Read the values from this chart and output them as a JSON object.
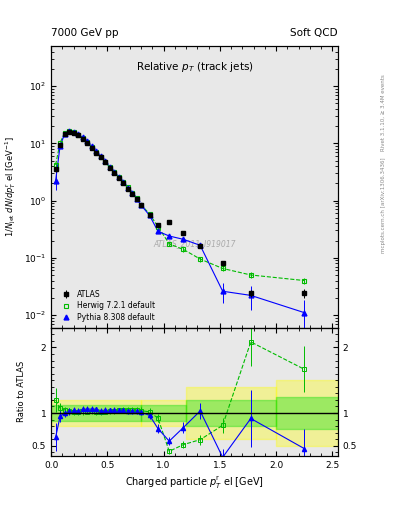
{
  "title_left": "7000 GeV pp",
  "title_right": "Soft QCD",
  "right_label_top": "Rivet 3.1.10, ≥ 3.4M events",
  "right_label_bottom": "mcplots.cern.ch [arXiv:1306.3436]",
  "plot_title": "Relative p_{T} (track jets)",
  "watermark": "ATLAS_2011_I919017",
  "ylabel_main": "1/N_{jet} dN/dp^{r}_{T} el [GeV^{-1}]",
  "ylabel_ratio": "Ratio to ATLAS",
  "xlabel": "Charged particle p^{r}_{T} el [GeV]",
  "atlas_x": [
    0.04,
    0.08,
    0.12,
    0.16,
    0.2,
    0.24,
    0.28,
    0.32,
    0.36,
    0.4,
    0.44,
    0.48,
    0.52,
    0.56,
    0.6,
    0.64,
    0.68,
    0.72,
    0.76,
    0.8,
    0.875,
    0.95,
    1.05,
    1.175,
    1.325,
    1.525,
    1.775,
    2.25
  ],
  "atlas_y": [
    3.5,
    9.5,
    14.5,
    15.8,
    15.2,
    13.8,
    12.0,
    10.2,
    8.3,
    6.9,
    5.7,
    4.65,
    3.75,
    3.05,
    2.45,
    2.0,
    1.62,
    1.32,
    1.05,
    0.82,
    0.57,
    0.38,
    0.42,
    0.27,
    0.16,
    0.08,
    0.024,
    0.024
  ],
  "atlas_yerr": [
    0.4,
    0.5,
    0.5,
    0.5,
    0.5,
    0.4,
    0.4,
    0.3,
    0.25,
    0.2,
    0.18,
    0.14,
    0.11,
    0.09,
    0.07,
    0.06,
    0.05,
    0.04,
    0.035,
    0.028,
    0.022,
    0.018,
    0.022,
    0.016,
    0.012,
    0.007,
    0.003,
    0.004
  ],
  "herwig_x": [
    0.04,
    0.08,
    0.12,
    0.16,
    0.2,
    0.24,
    0.28,
    0.32,
    0.36,
    0.4,
    0.44,
    0.48,
    0.52,
    0.56,
    0.6,
    0.64,
    0.68,
    0.72,
    0.76,
    0.8,
    0.875,
    0.95,
    1.05,
    1.175,
    1.325,
    1.525,
    1.775,
    2.25
  ],
  "herwig_y": [
    4.2,
    10.2,
    15.2,
    16.2,
    15.5,
    14.0,
    12.3,
    10.4,
    8.5,
    7.0,
    5.8,
    4.75,
    3.85,
    3.15,
    2.55,
    2.1,
    1.7,
    1.38,
    1.1,
    0.85,
    0.58,
    0.35,
    0.175,
    0.14,
    0.095,
    0.065,
    0.05,
    0.04
  ],
  "herwig_yerr": [
    0.4,
    0.5,
    0.5,
    0.5,
    0.5,
    0.4,
    0.4,
    0.3,
    0.25,
    0.2,
    0.18,
    0.14,
    0.11,
    0.09,
    0.07,
    0.06,
    0.05,
    0.04,
    0.035,
    0.028,
    0.022,
    0.018,
    0.012,
    0.012,
    0.01,
    0.007,
    0.006,
    0.005
  ],
  "pythia_x": [
    0.04,
    0.08,
    0.12,
    0.16,
    0.2,
    0.24,
    0.28,
    0.32,
    0.36,
    0.4,
    0.44,
    0.48,
    0.52,
    0.56,
    0.6,
    0.64,
    0.68,
    0.72,
    0.76,
    0.8,
    0.875,
    0.95,
    1.05,
    1.175,
    1.325,
    1.525,
    1.775,
    2.25
  ],
  "pythia_y": [
    2.2,
    9.0,
    14.5,
    16.2,
    15.8,
    14.3,
    12.7,
    10.8,
    8.8,
    7.3,
    5.9,
    4.85,
    3.9,
    3.2,
    2.55,
    2.08,
    1.68,
    1.36,
    1.08,
    0.83,
    0.55,
    0.29,
    0.24,
    0.21,
    0.165,
    0.026,
    0.022,
    0.011
  ],
  "pythia_yerr": [
    0.7,
    0.7,
    0.7,
    0.6,
    0.5,
    0.4,
    0.35,
    0.28,
    0.25,
    0.18,
    0.18,
    0.14,
    0.11,
    0.09,
    0.07,
    0.06,
    0.05,
    0.04,
    0.035,
    0.028,
    0.025,
    0.022,
    0.02,
    0.018,
    0.016,
    0.01,
    0.01,
    0.007
  ],
  "atlas_color": "#000000",
  "herwig_color": "#00bb00",
  "pythia_color": "#0000ff",
  "bg_color": "#e8e8e8",
  "yellow_band_color": "#ffff00",
  "green_band_color": "#00dd00",
  "yellow_alpha": 0.35,
  "green_alpha": 0.35,
  "ylim_main": [
    0.006,
    500
  ],
  "ylim_ratio": [
    0.35,
    2.3
  ],
  "xlim": [
    0.0,
    2.55
  ],
  "ratio_yticks": [
    0.5,
    1.0,
    2.0
  ],
  "ratio_yticklabels": [
    "0.5",
    "1",
    "2"
  ]
}
